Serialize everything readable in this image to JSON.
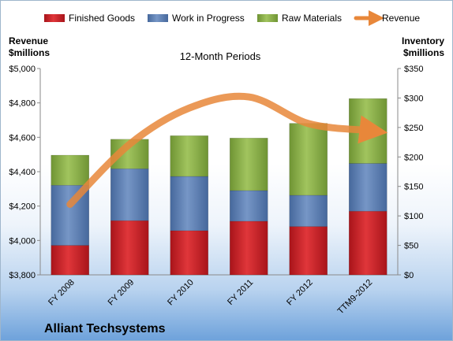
{
  "chart_data": {
    "type": "bar",
    "title": "12-Month Periods",
    "company": "Alliant Techsystems",
    "categories": [
      "FY 2008",
      "FY 2009",
      "FY 2010",
      "FY 2011",
      "FY 2012",
      "TTM9-2012"
    ],
    "left_axis": {
      "label_line1": "Revenue",
      "label_line2": "$millions",
      "min": 3800,
      "max": 5000,
      "ticks": [
        "$3,800",
        "$4,000",
        "$4,200",
        "$4,400",
        "$4,600",
        "$4,800",
        "$5,000"
      ]
    },
    "right_axis": {
      "label_line1": "Inventory",
      "label_line2": "$millions",
      "min": 0,
      "max": 350,
      "ticks": [
        "$0",
        "$50",
        "$100",
        "$150",
        "$200",
        "$250",
        "$300",
        "$350"
      ]
    },
    "series": [
      {
        "name": "Finished Goods",
        "type": "stacked-bar",
        "axis": "right",
        "color": "#cc1f24",
        "values": [
          50,
          92,
          75,
          91,
          82,
          108
        ]
      },
      {
        "name": "Work in Progress",
        "type": "stacked-bar",
        "axis": "right",
        "color": "#5b80b6",
        "values": [
          102,
          88,
          92,
          52,
          53,
          81
        ]
      },
      {
        "name": "Raw Materials",
        "type": "stacked-bar",
        "axis": "right",
        "color": "#8db24a",
        "values": [
          51,
          50,
          69,
          89,
          122,
          110
        ]
      },
      {
        "name": "Revenue",
        "type": "line",
        "axis": "left",
        "color": "#e8873a",
        "values": [
          4210,
          4560,
          4770,
          4835,
          4680,
          4640
        ]
      }
    ],
    "legend_position": "top",
    "grid": false
  }
}
